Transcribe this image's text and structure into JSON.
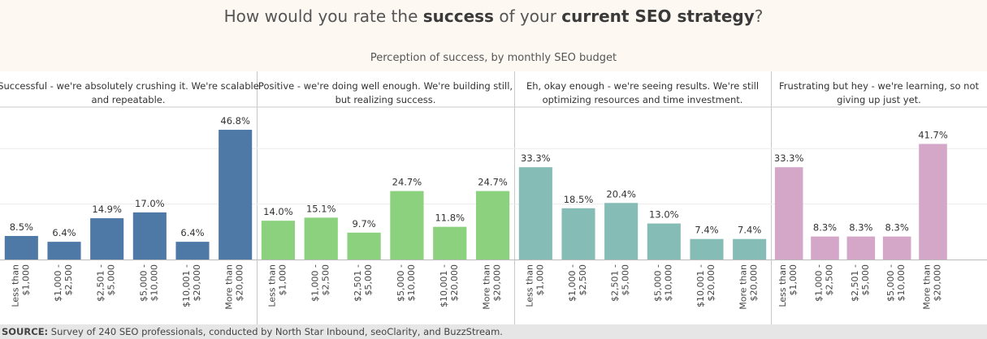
{
  "title": {
    "part1": "How would you rate the ",
    "bold1": "success",
    "part2": " of your ",
    "bold2": "current SEO strategy",
    "part3": "?"
  },
  "subtitle": "Perception of success, by monthly SEO budget",
  "footer": {
    "label": "SOURCE:",
    "text": " Survey of 240 SEO professionals, conducted by North Star Inbound, seoClarity, and BuzzStream."
  },
  "chart_data": {
    "type": "bar",
    "categories": [
      "Less than\n$1,000",
      "$1,000 -\n$2,500",
      "$2,501 -\n$5,000",
      "$5,000 -\n$10,000",
      "$10,001 -\n$20,000",
      "More than\n$20,000"
    ],
    "ylim": [
      0,
      55
    ],
    "grid": true,
    "panels": [
      {
        "header": [
          "Successful - we're absolutely crushing it. We're scalable",
          "and repeatable."
        ],
        "color": "#4e79a7",
        "values": [
          8.5,
          6.4,
          14.9,
          17.0,
          6.4,
          46.8
        ],
        "labels": [
          "8.5%",
          "6.4%",
          "14.9%",
          "17.0%",
          "6.4%",
          "46.8%"
        ]
      },
      {
        "header": [
          "Positive - we're doing well enough. We're building still,",
          "but realizing success."
        ],
        "color": "#8cd17d",
        "values": [
          14.0,
          15.1,
          9.7,
          24.7,
          11.8,
          24.7
        ],
        "labels": [
          "14.0%",
          "15.1%",
          "9.7%",
          "24.7%",
          "11.8%",
          "24.7%"
        ]
      },
      {
        "header": [
          "Eh, okay enough - we're seeing results. We're still",
          "optimizing resources and time investment."
        ],
        "color": "#86bcb6",
        "values": [
          33.3,
          18.5,
          20.4,
          13.0,
          7.4,
          7.4
        ],
        "labels": [
          "33.3%",
          "18.5%",
          "20.4%",
          "13.0%",
          "7.4%",
          "7.4%"
        ]
      },
      {
        "header": [
          "Frustrating but hey - we're learning, so not",
          "giving up just yet."
        ],
        "color": "#d4a6c8",
        "values": [
          33.3,
          8.3,
          8.3,
          8.3,
          41.7
        ],
        "labels": [
          "33.3%",
          "8.3%",
          "8.3%",
          "8.3%",
          "41.7%"
        ],
        "categories": [
          "Less than\n$1,000",
          "$1,000 -\n$2,500",
          "$2,501 -\n$5,000",
          "$5,000 -\n$10,000",
          "More than\n$20,000"
        ]
      }
    ]
  }
}
